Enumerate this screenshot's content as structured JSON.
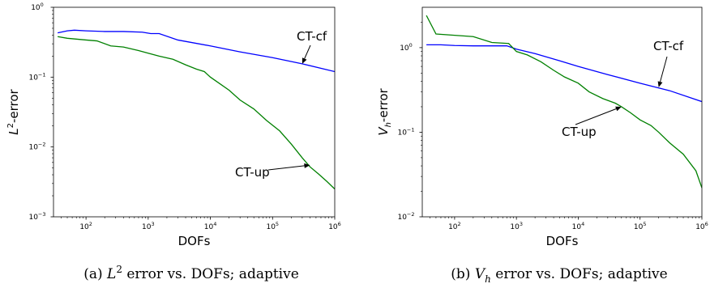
{
  "chart_data": [
    {
      "id": "a",
      "type": "line",
      "caption": "(a) L² error vs. DOFs; adaptive",
      "caption_parts": [
        "(a) ",
        "L",
        "2",
        " error vs. DOFs; adaptive"
      ],
      "xlabel": "DOFs",
      "ylabel_parts": [
        "L",
        "2",
        "-error"
      ],
      "xscale": "log",
      "yscale": "log",
      "xlim": [
        30,
        1000000
      ],
      "ylim": [
        0.001,
        1
      ],
      "x_ticks": [
        100,
        1000,
        10000,
        100000,
        1000000
      ],
      "x_tick_labels": [
        [
          "10",
          "2"
        ],
        [
          "10",
          "3"
        ],
        [
          "10",
          "4"
        ],
        [
          "10",
          "5"
        ],
        [
          "10",
          "6"
        ]
      ],
      "y_ticks": [
        0.001,
        0.01,
        0.1,
        1
      ],
      "y_tick_labels": [
        [
          "10",
          "−3"
        ],
        [
          "10",
          "−2"
        ],
        [
          "10",
          "−1"
        ],
        [
          "10",
          "0"
        ]
      ],
      "series": [
        {
          "name": "CT-cf",
          "color": "#0000ff",
          "x": [
            35,
            50,
            65,
            100,
            200,
            400,
            800,
            1100,
            1500,
            3000,
            10000,
            30000,
            100000,
            300000,
            1000000
          ],
          "y": [
            0.43,
            0.46,
            0.47,
            0.46,
            0.45,
            0.45,
            0.44,
            0.42,
            0.42,
            0.34,
            0.28,
            0.23,
            0.19,
            0.155,
            0.12
          ]
        },
        {
          "name": "CT-up",
          "color": "#008000",
          "x": [
            35,
            50,
            100,
            150,
            250,
            400,
            700,
            1000,
            1500,
            2500,
            4000,
            6000,
            8000,
            10000,
            13000,
            20000,
            30000,
            50000,
            80000,
            130000,
            200000,
            300000,
            400000,
            550000,
            750000,
            1000000
          ],
          "y": [
            0.38,
            0.36,
            0.34,
            0.33,
            0.28,
            0.27,
            0.24,
            0.22,
            0.2,
            0.18,
            0.15,
            0.13,
            0.12,
            0.1,
            0.085,
            0.065,
            0.047,
            0.035,
            0.024,
            0.017,
            0.011,
            0.007,
            0.0052,
            0.0041,
            0.0032,
            0.0025
          ]
        }
      ],
      "annotations": [
        {
          "text": "CT-cf",
          "series": "CT-cf",
          "point_x": 300000,
          "point_y": 0.155
        },
        {
          "text": "CT-up",
          "series": "CT-up",
          "point_x": 400000,
          "point_y": 0.0055
        }
      ]
    },
    {
      "id": "b",
      "type": "line",
      "caption": "(b) V_h error vs. DOFs; adaptive",
      "caption_parts": [
        "(b) ",
        "V",
        "h",
        " error vs. DOFs; adaptive"
      ],
      "xlabel": "DOFs",
      "ylabel_parts": [
        "V",
        "h",
        "-error"
      ],
      "xscale": "log",
      "yscale": "log",
      "xlim": [
        30,
        1000000
      ],
      "ylim": [
        0.01,
        3
      ],
      "x_ticks": [
        100,
        1000,
        10000,
        100000,
        1000000
      ],
      "x_tick_labels": [
        [
          "10",
          "2"
        ],
        [
          "10",
          "3"
        ],
        [
          "10",
          "4"
        ],
        [
          "10",
          "5"
        ],
        [
          "10",
          "6"
        ]
      ],
      "y_ticks": [
        0.01,
        0.1,
        1
      ],
      "y_tick_labels": [
        [
          "10",
          "−2"
        ],
        [
          "10",
          "−1"
        ],
        [
          "10",
          "0"
        ]
      ],
      "series": [
        {
          "name": "CT-cf",
          "color": "#0000ff",
          "x": [
            35,
            60,
            100,
            200,
            400,
            700,
            1000,
            2000,
            5000,
            10000,
            30000,
            100000,
            300000,
            1000000
          ],
          "y": [
            1.08,
            1.08,
            1.06,
            1.05,
            1.05,
            1.05,
            0.96,
            0.85,
            0.7,
            0.6,
            0.48,
            0.38,
            0.31,
            0.23
          ]
        },
        {
          "name": "CT-up",
          "color": "#008000",
          "x": [
            35,
            50,
            100,
            200,
            400,
            750,
            1000,
            1500,
            2500,
            4000,
            6000,
            10000,
            15000,
            25000,
            40000,
            50000,
            70000,
            100000,
            150000,
            200000,
            300000,
            500000,
            800000,
            1000000
          ],
          "y": [
            2.4,
            1.45,
            1.4,
            1.35,
            1.15,
            1.12,
            0.9,
            0.82,
            0.68,
            0.54,
            0.45,
            0.38,
            0.3,
            0.25,
            0.22,
            0.2,
            0.17,
            0.14,
            0.12,
            0.1,
            0.075,
            0.055,
            0.035,
            0.022
          ]
        }
      ],
      "annotations": [
        {
          "text": "CT-cf",
          "series": "CT-cf",
          "point_x": 200000,
          "point_y": 0.34
        },
        {
          "text": "CT-up",
          "series": "CT-up",
          "point_x": 50000,
          "point_y": 0.2
        }
      ]
    }
  ]
}
